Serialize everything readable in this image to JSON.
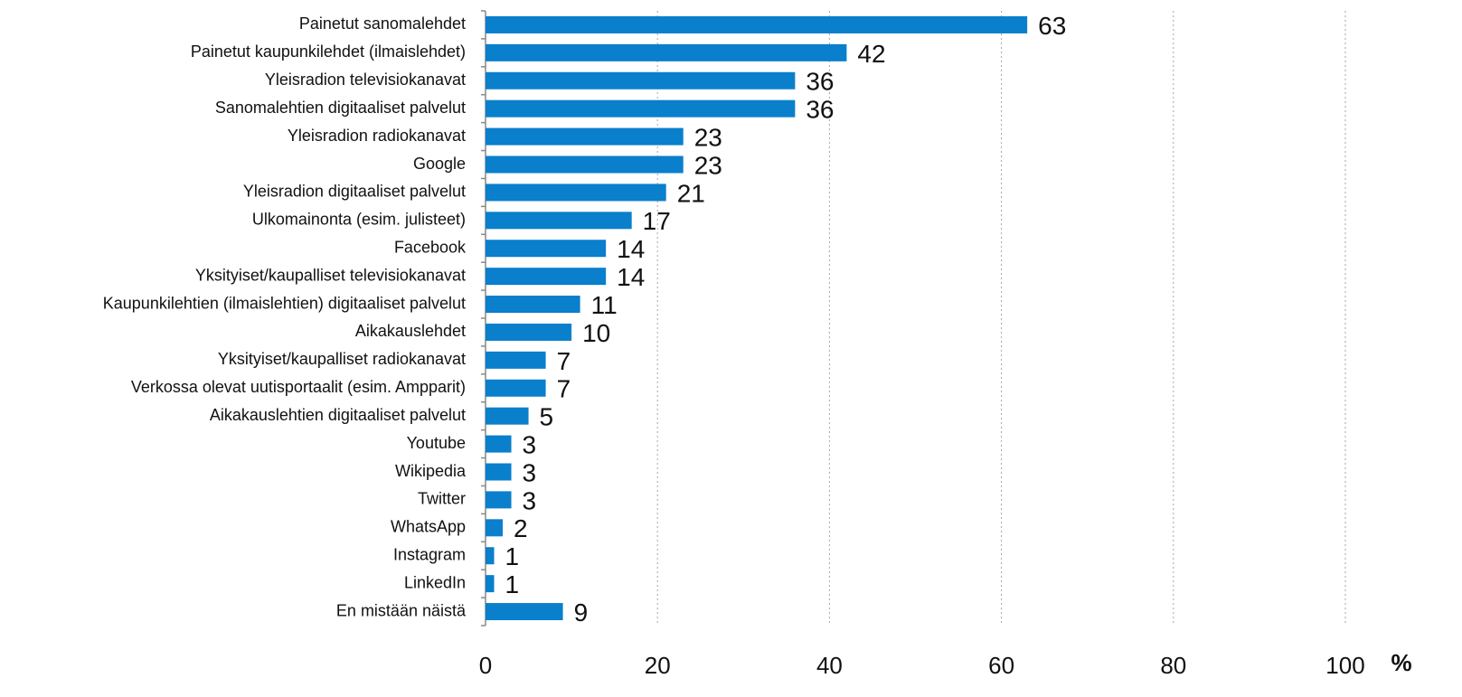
{
  "chart_data": {
    "type": "barh",
    "categories": [
      "Painetut sanomalehdet",
      "Painetut kaupunkilehdet (ilmaislehdet)",
      "Yleisradion televisiokanavat",
      "Sanomalehtien digitaaliset palvelut",
      "Yleisradion radiokanavat",
      "Google",
      "Yleisradion digitaaliset palvelut",
      "Ulkomainonta (esim. julisteet)",
      "Facebook",
      "Yksityiset/kaupalliset televisiokanavat",
      "Kaupunkilehtien (ilmaislehtien) digitaaliset palvelut",
      "Aikakauslehdet",
      "Yksityiset/kaupalliset radiokanavat",
      "Verkossa olevat uutisportaalit (esim. Ampparit)",
      "Aikakauslehtien digitaaliset palvelut",
      "Youtube",
      "Wikipedia",
      "Twitter",
      "WhatsApp",
      "Instagram",
      "LinkedIn",
      "En mistään näistä"
    ],
    "values": [
      63,
      42,
      36,
      36,
      23,
      23,
      21,
      17,
      14,
      14,
      11,
      10,
      7,
      7,
      5,
      3,
      3,
      3,
      2,
      1,
      1,
      9
    ],
    "color": "#0a7fcc",
    "xlabel": "%",
    "xlim": [
      0,
      100
    ],
    "xticks": [
      0,
      20,
      40,
      60,
      80,
      100
    ],
    "grid": true
  }
}
